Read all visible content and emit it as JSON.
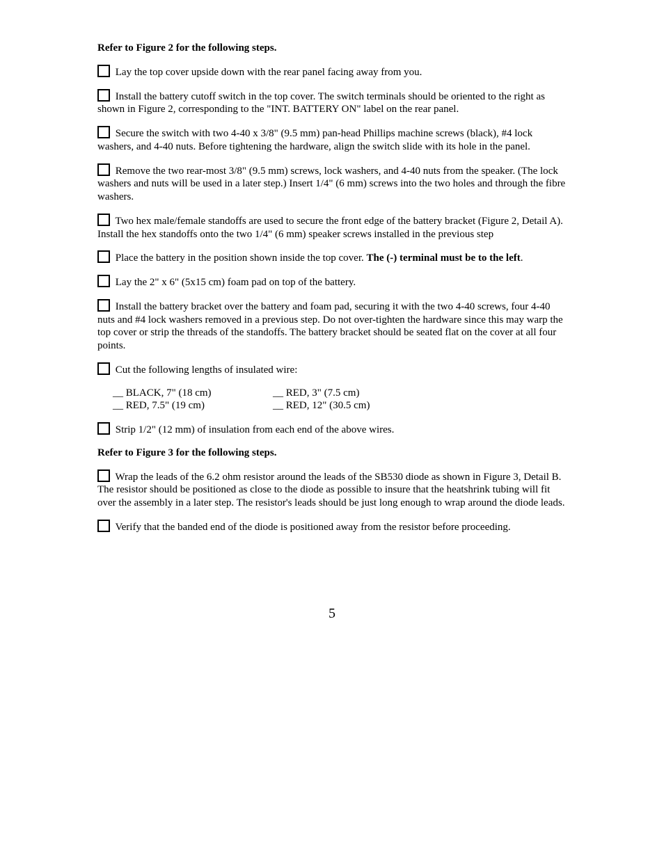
{
  "heading1": "Refer to Figure 2 for the following steps.",
  "steps1": [
    "Lay the top cover upside down with the rear panel facing away from you.",
    "Install the battery cutoff switch in the top cover. The switch terminals should be oriented to the right as shown in Figure 2, corresponding to the \"INT. BATTERY ON\" label on the rear panel.",
    "Secure the switch with two 4-40 x 3/8\" (9.5 mm) pan-head Phillips machine screws (black), #4 lock washers, and 4-40 nuts. Before tightening the hardware, align the switch slide with its hole in the panel.",
    "Remove the two rear-most 3/8\" (9.5 mm) screws, lock washers, and 4-40 nuts from the speaker. (The lock washers and nuts will be used in a later step.) Insert 1/4\" (6 mm) screws into the two holes and through the fibre washers.",
    "Two hex male/female standoffs are used to secure the front edge of the battery bracket (Figure 2, Detail A). Install the hex standoffs onto the two 1/4\" (6 mm) speaker screws installed in the previous step"
  ],
  "step_battery_prefix": "Place the battery in the position shown inside the top cover. ",
  "step_battery_bold": "The (-) terminal must be to the left",
  "step_battery_suffix": ".",
  "steps2": [
    "Lay the 2\" x 6\" (5x15 cm) foam pad on top of the battery.",
    "Install the battery bracket over the battery and foam pad, securing it with the two 4-40 screws, four 4-40 nuts and #4 lock washers removed in a previous step. Do not over-tighten the hardware since this may warp the top cover or strip the threads of the standoffs. The battery bracket should be seated flat on the cover at all four points.",
    "Cut the following lengths of insulated wire:"
  ],
  "wires": {
    "a1": "__ BLACK, 7\" (18 cm)",
    "b1": "__ RED, 3\" (7.5 cm)",
    "a2": "__ RED, 7.5\" (19 cm)",
    "b2": "__ RED, 12\" (30.5 cm)"
  },
  "step_strip": "Strip 1/2\" (12 mm) of insulation from each end of the above wires.",
  "heading2": "Refer to Figure 3 for the following steps.",
  "steps3": [
    "Wrap the leads of the 6.2 ohm resistor around the leads of the SB530 diode as shown in Figure 3, Detail B. The resistor should be positioned as close to the diode as possible to insure that the heatshrink tubing will fit over the assembly in a later step. The resistor's leads should be just long enough to wrap around the diode leads.",
    "Verify that the banded end of the diode is positioned away from the resistor before proceeding."
  ],
  "page_number": "5"
}
